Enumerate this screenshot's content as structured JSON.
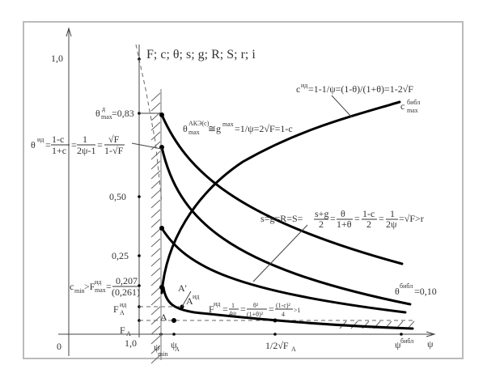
{
  "axis_title": "F; c; θ; s; g; R; S; r; i",
  "y_ticks": {
    "one_outer": "1,0",
    "one_inner": "1,0",
    "half": "0,50",
    "quarter": "0,25",
    "origin": "0"
  },
  "theta_max_d": {
    "base": "θ",
    "sup": "д",
    "sub": "max",
    "rest": "=0,83"
  },
  "theta_id_formula": {
    "lhs": "θ",
    "sup": "ид",
    "f1_num": "1-c",
    "f1_den": "1+c",
    "f2_num": "1",
    "f2_den": "2ψ-1",
    "f3_num": "√F",
    "f3_den": "1-√F"
  },
  "theta_ake_formula": {
    "base": "θ",
    "sup": "АКЭ(с)",
    "sub": "max",
    "rest": "≅g",
    "sup2": "max",
    "rest2": "=1/ψ=2√F=1-c"
  },
  "c_formula": {
    "base": "c",
    "sup": "ид",
    "rest": "=1-1/ψ=(1-θ)/(1+θ)=1-2√F"
  },
  "c_max_label": {
    "base": "c",
    "sup": "библ",
    "sub": "max"
  },
  "s_formula": {
    "lhs": "s=g=R=S=",
    "f1_num": "s+g",
    "f1_den": "2",
    "f2_num": "θ",
    "f2_den": "1+θ",
    "f3_num": "1-c",
    "f3_den": "2",
    "f4_num": "1",
    "f4_den": "2ψ",
    "rest": "=√F>r"
  },
  "theta_bibl": {
    "base": "θ",
    "sup": "библ",
    "rest": "=0,10"
  },
  "f_formula": {
    "base": "F",
    "sup": "ид",
    "f1_num": "1",
    "f1_den": "4ψ",
    "f2_num": "θ²",
    "f2_den": "(1+θ)²",
    "f3_num": "(1-c)²",
    "f3_den": "4",
    "rest": ">1"
  },
  "c_min_formula": {
    "base": "c",
    "sub": "min",
    "mid": ">F",
    "sup": "ид",
    "sub2": "max",
    "num": "0,207",
    "den": "(0,261)"
  },
  "points": {
    "fa_id": {
      "base": "F",
      "sup": "ид",
      "sub": "A"
    },
    "fa": {
      "base": "F",
      "sub": "A"
    },
    "a": "A",
    "a_prime": "A'",
    "a_id": {
      "base": "A",
      "sup": "ид"
    }
  },
  "x_ticks": {
    "psi_min": {
      "base": "ψ",
      "sub": "min"
    },
    "psi_a": {
      "base": "ψ",
      "sub": "A"
    },
    "half_sqrt_fa": {
      "base": "1/2√F",
      "sub": "A"
    },
    "psi_bibl": {
      "base": "ψ",
      "sup": "библ"
    },
    "psi": "ψ"
  }
}
